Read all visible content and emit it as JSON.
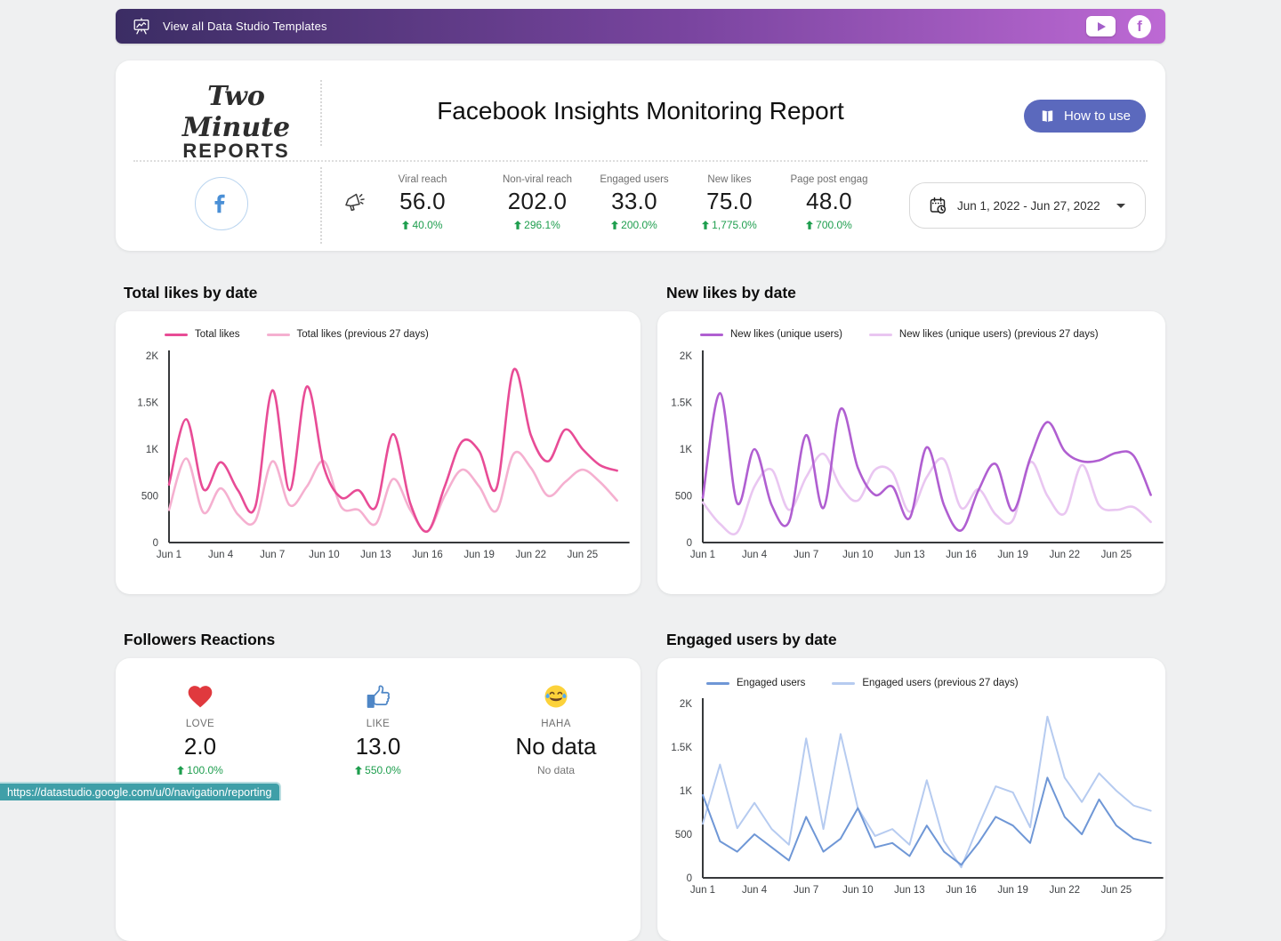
{
  "banner": {
    "label": "View all Data Studio Templates"
  },
  "header": {
    "logo_line1": "Two Minute",
    "logo_line2": "REPORTS",
    "title": "Facebook Insights Monitoring Report",
    "how_to_use": "How to use"
  },
  "kpis": [
    {
      "label": "Viral reach",
      "value": "56.0",
      "delta": "40.0%"
    },
    {
      "label": "Non-viral reach",
      "value": "202.0",
      "delta": "296.1%"
    },
    {
      "label": "Engaged users",
      "value": "33.0",
      "delta": "200.0%"
    },
    {
      "label": "New likes",
      "value": "75.0",
      "delta": "1,775.0%"
    },
    {
      "label": "Page post engag",
      "value": "48.0",
      "delta": "700.0%"
    }
  ],
  "date_range": {
    "value": "Jun 1, 2022 - Jun 27, 2022"
  },
  "reactions": {
    "title": "Followers Reactions",
    "items": [
      {
        "icon": "heart-emoji",
        "label": "LOVE",
        "value": "2.0",
        "delta": "100.0%"
      },
      {
        "icon": "thumbs-up-icon",
        "label": "LIKE",
        "value": "13.0",
        "delta": "550.0%"
      },
      {
        "icon": "laughing-emoji",
        "label": "HAHA",
        "value": "No data",
        "delta": "No data"
      }
    ]
  },
  "status_bar": {
    "url": "https://datastudio.google.com/u/0/navigation/reporting"
  },
  "colors": {
    "banner_gradient": [
      "#3b2d64",
      "#bd69d4"
    ],
    "accent_button": "#5b69bd",
    "positive_green": "#1e9e4e",
    "facebook_blue": "#4a8fd6",
    "status_bar_teal": "#3f9fa8"
  },
  "icons": [
    "presentation-chart-icon",
    "youtube-icon",
    "facebook-badge-icon",
    "book-icon",
    "facebook-circle-icon",
    "megaphone-icon",
    "calendar-clock-icon",
    "up-arrow-icon",
    "heart-emoji",
    "thumbs-up-icon",
    "laughing-emoji"
  ],
  "chart_data": [
    {
      "type": "line",
      "smooth": true,
      "title": "Total likes by date",
      "x_ticks": [
        "Jun 1",
        "Jun 4",
        "Jun 7",
        "Jun 10",
        "Jun 13",
        "Jun 16",
        "Jun 19",
        "Jun 22",
        "Jun 25"
      ],
      "x_range": "Jun 1 - Jun 27, 2022 (daily)",
      "y_ticks": [
        "2K",
        "1.5K",
        "1K",
        "500",
        "0"
      ],
      "ylim": [
        0,
        2000
      ],
      "legend_position": "top",
      "series": [
        {
          "name": "Total likes",
          "color": "#e84c96",
          "values": [
            620,
            1320,
            570,
            860,
            560,
            380,
            1630,
            560,
            1670,
            800,
            480,
            560,
            380,
            1160,
            420,
            120,
            600,
            1080,
            980,
            580,
            1850,
            1150,
            870,
            1210,
            1000,
            830,
            770
          ]
        },
        {
          "name": "Total likes (previous 27 days)",
          "color": "#f5b0d0",
          "values": [
            350,
            900,
            320,
            580,
            300,
            230,
            870,
            400,
            600,
            870,
            380,
            350,
            200,
            680,
            350,
            120,
            500,
            780,
            600,
            340,
            950,
            800,
            500,
            650,
            780,
            650,
            450
          ]
        }
      ]
    },
    {
      "type": "line",
      "smooth": true,
      "title": "New likes by date",
      "x_ticks": [
        "Jun 1",
        "Jun 4",
        "Jun 7",
        "Jun 10",
        "Jun 13",
        "Jun 16",
        "Jun 19",
        "Jun 22",
        "Jun 25"
      ],
      "x_range": "Jun 1 - Jun 27, 2022 (daily)",
      "y_ticks": [
        "2K",
        "1.5K",
        "1K",
        "500",
        "0"
      ],
      "ylim": [
        0,
        2000
      ],
      "legend_position": "top",
      "series": [
        {
          "name": "New likes (unique users)",
          "color": "#b05fd1",
          "values": [
            480,
            1600,
            420,
            1000,
            400,
            220,
            1150,
            370,
            1430,
            800,
            510,
            600,
            260,
            1020,
            400,
            130,
            560,
            840,
            340,
            900,
            1290,
            980,
            870,
            880,
            960,
            930,
            510
          ]
        },
        {
          "name": "New likes (unique users) (previous 27 days)",
          "color": "#e9c6f1",
          "values": [
            430,
            200,
            110,
            600,
            780,
            350,
            700,
            950,
            600,
            450,
            780,
            750,
            330,
            700,
            890,
            370,
            570,
            300,
            240,
            860,
            500,
            310,
            830,
            400,
            350,
            380,
            220
          ]
        }
      ]
    },
    {
      "type": "line",
      "smooth": false,
      "title": "Engaged users by date",
      "x_ticks": [
        "Jun 1",
        "Jun 4",
        "Jun 7",
        "Jun 10",
        "Jun 13",
        "Jun 16",
        "Jun 19",
        "Jun 22",
        "Jun 25"
      ],
      "x_range": "Jun 1 - Jun 27, 2022 (daily)",
      "y_ticks": [
        "2K",
        "1.5K",
        "1K",
        "500",
        "0"
      ],
      "ylim": [
        0,
        2000
      ],
      "legend_position": "top",
      "series": [
        {
          "name": "Engaged users",
          "color": "#6f97d6",
          "values": [
            950,
            420,
            300,
            500,
            350,
            200,
            700,
            300,
            450,
            800,
            350,
            400,
            250,
            600,
            300,
            150,
            400,
            700,
            600,
            400,
            1150,
            700,
            500,
            900,
            600,
            450,
            400
          ]
        },
        {
          "name": "Engaged users (previous 27 days)",
          "color": "#b6cbf0",
          "values": [
            620,
            1300,
            570,
            860,
            560,
            380,
            1600,
            560,
            1650,
            800,
            480,
            560,
            380,
            1120,
            420,
            120,
            600,
            1050,
            980,
            580,
            1850,
            1150,
            870,
            1200,
            1000,
            830,
            770
          ]
        }
      ]
    }
  ]
}
